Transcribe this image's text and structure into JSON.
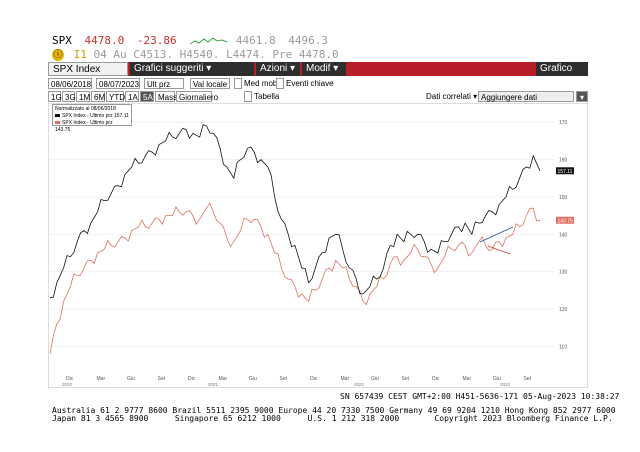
{
  "quote": {
    "ticker": "SPX",
    "last": "4478.0",
    "change": "-23.86",
    "low_high": "4461.8",
    "high_range": "4496.3",
    "line2": {
      "badge": "ⓘ",
      "prefix": "I1",
      "time": "04",
      "au_label": "Au",
      "c": "C4513.",
      "h": "H4540.",
      "l": "L4474.",
      "pre": "Pre 4478.0"
    }
  },
  "toolbar": {
    "security": "SPX Index",
    "menu1": "Grafici suggeriti",
    "menu2": "Azioni",
    "menu3": "Modif",
    "chart_type": "Grafico linea"
  },
  "controls": {
    "start_date": "08/06/2018",
    "end_date": "08/07/2023",
    "field": "Ult prz",
    "currency": "Val locale",
    "med_mob": "Med mob",
    "eventi": "Eventi chiave"
  },
  "periods": [
    "1G",
    "3G",
    "1M",
    "6M",
    "YTD",
    "1A",
    "5A",
    "Mass"
  ],
  "controls2": {
    "freq": "Giornaliero",
    "tabella": "Tabella",
    "dati_correlati": "Dati correlati",
    "aggiungere": "Aggiungere dati"
  },
  "legend": {
    "title": "Normalizzato al 08/06/2018",
    "series1": "SPX Index - Ultimo prz 157.11",
    "series2": "SPX Index - Ultimo prz 143.75"
  },
  "colors": {
    "series1": "#111111",
    "series2": "#e07060",
    "toolbar": "#b81e2a"
  },
  "chart_data": {
    "type": "line",
    "yticks": [
      "110",
      "120",
      "130",
      "140",
      "150",
      "160",
      "170"
    ],
    "ylim": [
      105,
      173
    ],
    "xticks": [
      "Dic",
      "Mar",
      "Giu",
      "Set",
      "Dic",
      "Mar",
      "Giu",
      "Set",
      "Dic",
      "Mar",
      "Giu",
      "Set",
      "Dic",
      "Mar",
      "Giu",
      "Set"
    ],
    "year_labels": [
      "2020",
      "2021",
      "2022",
      "2023"
    ],
    "last_labels": [
      "157.11",
      "143.75"
    ],
    "series": [
      {
        "name": "SPX Index - Ultimo prz 157.11",
        "values": [
          123,
          127,
          131,
          134,
          138,
          141,
          143,
          146,
          149,
          151,
          153,
          156,
          158,
          159,
          161,
          162,
          164,
          165,
          166,
          167,
          168,
          167,
          166,
          169,
          167,
          163,
          158,
          155,
          160,
          163,
          162,
          160,
          158,
          150,
          144,
          140,
          137,
          131,
          127,
          131,
          135,
          139,
          140,
          136,
          131,
          128,
          124,
          126,
          128,
          131,
          137,
          140,
          138,
          140,
          140,
          138,
          136,
          135,
          138,
          140,
          142,
          143,
          140,
          143,
          145,
          146,
          148,
          150,
          152,
          155,
          158,
          161,
          157
        ]
      },
      {
        "name": "SPX Index - Ultimo prz 143.75",
        "values": [
          108,
          116,
          122,
          126,
          129,
          131,
          133,
          135,
          136,
          137,
          138,
          139,
          141,
          142,
          142,
          143,
          144,
          145,
          145,
          146,
          146,
          145,
          144,
          147,
          146,
          143,
          139,
          138,
          141,
          144,
          144,
          142,
          140,
          135,
          131,
          128,
          126,
          124,
          122,
          125,
          128,
          131,
          133,
          131,
          128,
          126,
          122,
          124,
          126,
          128,
          132,
          134,
          133,
          135,
          136,
          134,
          132,
          131,
          134,
          136,
          137,
          137,
          135,
          138,
          137,
          136,
          138,
          139,
          140,
          142,
          145,
          147,
          143.75
        ]
      }
    ]
  },
  "footer": {
    "sn_line": "SN 657439 CEST GMT+2:00 H451-5636-171 05-Aug-2023 10:38:27",
    "contacts1": "Australia 61 2 9777 8600 Brazil 5511 2395 9000 Europe 44 20 7330 7500 Germany 49 69 9204 1210 Hong Kong 852 2977 6000",
    "contacts2a": "Japan 81 3 4565 8900",
    "contacts2b": "Singapore 65 6212 1000",
    "contacts2c": "U.S. 1 212 318 2000",
    "copyright": "Copyright 2023 Bloomberg Finance L.P."
  }
}
